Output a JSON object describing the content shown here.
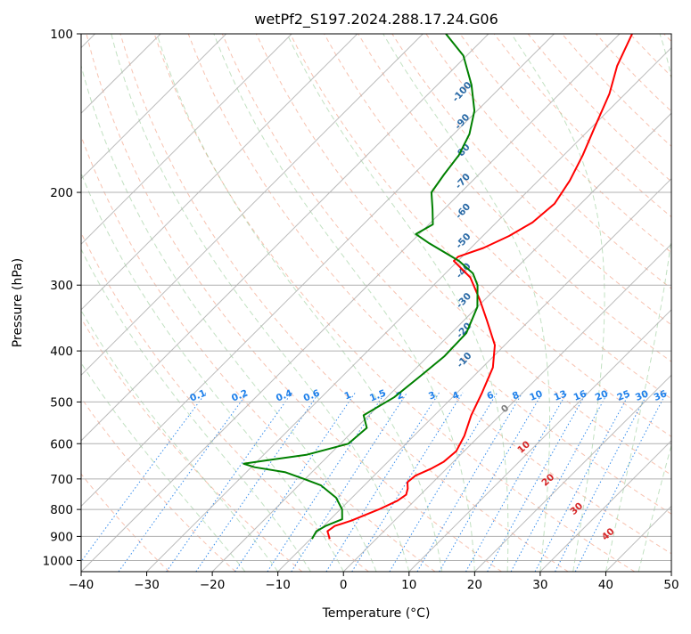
{
  "chart_data": {
    "type": "line",
    "subtype": "skew-t log-p diagram",
    "title": "wetPf2_S197.2024.288.17.24.G06",
    "xlabel": "Temperature (°C)",
    "ylabel": "Pressure (hPa)",
    "xlim": [
      -40,
      50
    ],
    "ylim_pressure": [
      1050,
      100
    ],
    "y_scale": "log",
    "grid": true,
    "x_ticks": [
      -40,
      -30,
      -20,
      -10,
      0,
      10,
      20,
      30,
      40,
      50
    ],
    "x_tick_labels": [
      "−40",
      "−30",
      "−20",
      "−10",
      "0",
      "10",
      "20",
      "30",
      "40",
      "50"
    ],
    "y_ticks": [
      100,
      200,
      300,
      400,
      500,
      600,
      700,
      800,
      900,
      1000
    ],
    "y_tick_labels": [
      "100",
      "200",
      "300",
      "400",
      "500",
      "600",
      "700",
      "800",
      "900",
      "1000"
    ],
    "series": [
      {
        "color": "#ff0000",
        "points": [
          [
            910,
            -7.1
          ],
          [
            880,
            -8.6
          ],
          [
            860,
            -8.3
          ],
          [
            840,
            -6.6
          ],
          [
            800,
            -4.1
          ],
          [
            770,
            -2.6
          ],
          [
            750,
            -2.2
          ],
          [
            730,
            -2.9
          ],
          [
            710,
            -3.9
          ],
          [
            690,
            -3.7
          ],
          [
            670,
            -2.4
          ],
          [
            650,
            -1.5
          ],
          [
            620,
            -1.2
          ],
          [
            580,
            -2.3
          ],
          [
            530,
            -4.4
          ],
          [
            480,
            -6.2
          ],
          [
            430,
            -8.4
          ],
          [
            390,
            -11.5
          ],
          [
            350,
            -16.5
          ],
          [
            320,
            -20.7
          ],
          [
            290,
            -25.6
          ],
          [
            270,
            -30.6
          ],
          [
            265,
            -30.6
          ],
          [
            255,
            -28.1
          ],
          [
            242,
            -26.0
          ],
          [
            228,
            -24.5
          ],
          [
            210,
            -24.0
          ],
          [
            190,
            -25.2
          ],
          [
            170,
            -27.1
          ],
          [
            150,
            -29.6
          ],
          [
            130,
            -32.4
          ],
          [
            115,
            -35.5
          ],
          [
            100,
            -38.1
          ]
        ]
      },
      {
        "color": "#008000",
        "points": [
          [
            910,
            -9.8
          ],
          [
            880,
            -10.3
          ],
          [
            860,
            -9.7
          ],
          [
            835,
            -8.2
          ],
          [
            800,
            -9.7
          ],
          [
            760,
            -12.4
          ],
          [
            720,
            -16.6
          ],
          [
            700,
            -20.2
          ],
          [
            680,
            -24.0
          ],
          [
            665,
            -29.5
          ],
          [
            655,
            -31.7
          ],
          [
            645,
            -28.5
          ],
          [
            630,
            -23.5
          ],
          [
            600,
            -18.8
          ],
          [
            560,
            -18.4
          ],
          [
            530,
            -20.8
          ],
          [
            490,
            -18.9
          ],
          [
            450,
            -18.2
          ],
          [
            410,
            -17.5
          ],
          [
            370,
            -17.7
          ],
          [
            330,
            -20.0
          ],
          [
            300,
            -23.3
          ],
          [
            285,
            -25.8
          ],
          [
            270,
            -29.8
          ],
          [
            250,
            -37.0
          ],
          [
            240,
            -40.5
          ],
          [
            230,
            -39.4
          ],
          [
            215,
            -41.8
          ],
          [
            200,
            -44.5
          ],
          [
            185,
            -45.3
          ],
          [
            170,
            -46.0
          ],
          [
            155,
            -47.6
          ],
          [
            140,
            -50.4
          ],
          [
            125,
            -54.8
          ],
          [
            110,
            -60.5
          ],
          [
            100,
            -66.5
          ]
        ]
      }
    ],
    "reference_lines": {
      "isotherms_skewed": true,
      "dry_adiabats": "dashed, coral",
      "moist_adiabats": "dashed, light green",
      "mixing_ratio_lines": "dotted, blue",
      "isobars": true
    },
    "mixing_ratio_labels": [
      "0.1",
      "0.2",
      "0.4",
      "0.6",
      "1",
      "1.5",
      "2",
      "3",
      "4",
      "6",
      "8",
      "10",
      "13",
      "16",
      "20",
      "25",
      "30",
      "36"
    ],
    "dry_adiabat_labels": [
      "-100",
      "-90",
      "-80",
      "-70",
      "-60",
      "-50",
      "-40",
      "-30",
      "-20",
      "-10"
    ],
    "moist_adiabat_labels": [
      "0",
      "10",
      "20",
      "30",
      "40"
    ],
    "colors": {
      "temperature": "#ff0000",
      "dewpoint": "#008000",
      "dry_adiabat": "#f08f70",
      "moist_adiabat": "#86c486",
      "mixing_ratio": "#1f80ea",
      "mixing_label": "#1f80ea",
      "dry_label": "#2a6aa6",
      "moist_label": "#d62728",
      "grid": "#b0b0b0"
    }
  }
}
